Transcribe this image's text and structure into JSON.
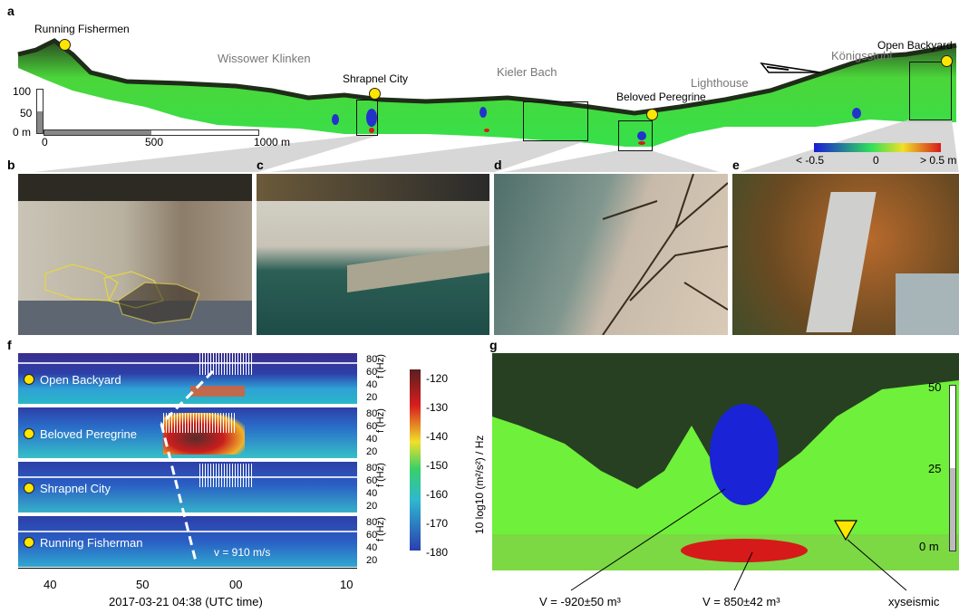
{
  "panels": {
    "a": {
      "label": "a",
      "sites": [
        "Running Fishermen",
        "Shrapnel City",
        "Beloved Peregrine",
        "Open Backyard"
      ],
      "places": [
        "Wissower Klinken",
        "Kieler Bach",
        "Lighthouse",
        "Königsstuhl"
      ],
      "vscale": {
        "top": "100",
        "mid": "50",
        "bottom": "0 m"
      },
      "hscale": {
        "t0": "0",
        "t1": "500",
        "t2": "1000 m"
      },
      "colorbar": {
        "left": "< -0.5",
        "mid": "0",
        "right": "> 0.5 m",
        "colors": [
          "#1a1ad6",
          "#2fe05a",
          "#f0e02a",
          "#d61a1a"
        ]
      }
    },
    "b": {
      "label": "b"
    },
    "c": {
      "label": "c"
    },
    "d": {
      "label": "d"
    },
    "e": {
      "label": "e"
    },
    "f": {
      "label": "f",
      "stations": [
        "Open Backyard",
        "Beloved Peregrine",
        "Shrapnel City",
        "Running Fisherman"
      ],
      "freq_ticks": [
        "80",
        "60",
        "40",
        "20"
      ],
      "freq_unit": "f (Hz)",
      "velocity": "v = 910 m/s",
      "time_ticks": [
        "40",
        "50",
        "00",
        "10"
      ],
      "time_label": "2017-03-21 04:38 (UTC time)",
      "colorbar_ticks": [
        "-120",
        "-130",
        "-140",
        "-150",
        "-160",
        "-170",
        "-180"
      ],
      "colorbar_label": "10 log10 (m²/s²) / Hz"
    },
    "g": {
      "label": "g",
      "scale": {
        "top": "50",
        "mid": "25",
        "bottom": "0 m"
      },
      "volume_loss": "V = -920±50 m³",
      "volume_gain": "V = 850±42 m³",
      "seismic_label": "xyseismic"
    }
  }
}
